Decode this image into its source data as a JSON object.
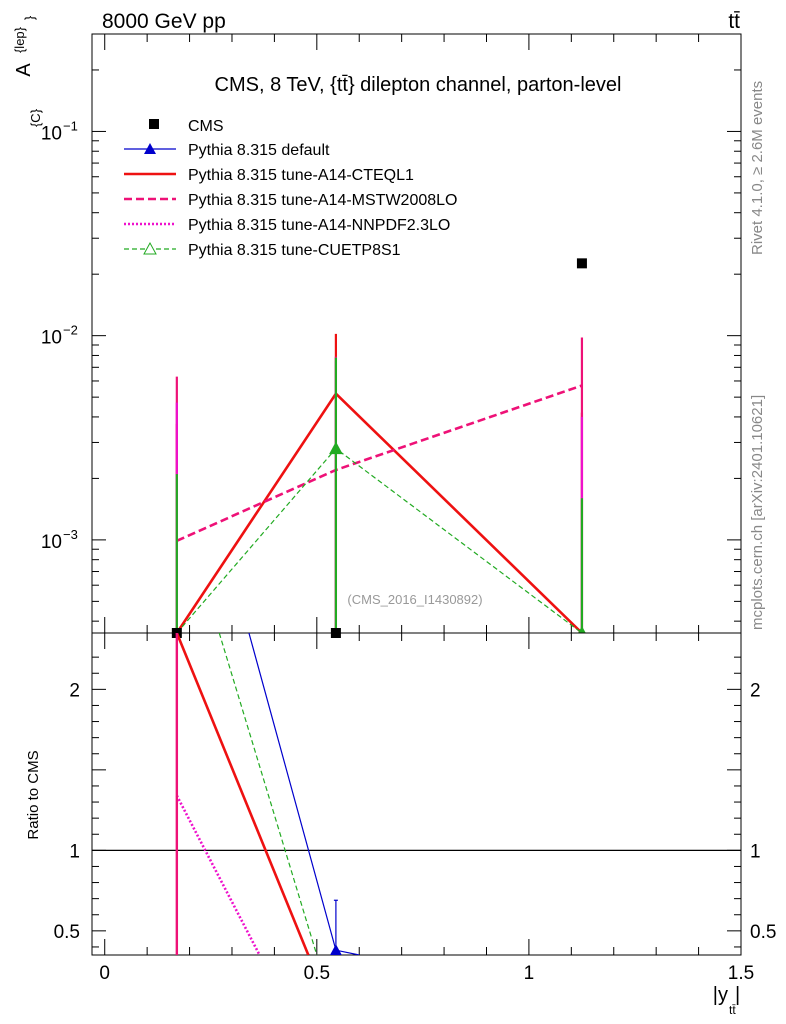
{
  "header": {
    "left": "8000 GeV pp",
    "right": "tt̄"
  },
  "side_labels": {
    "rivet": "Rivet 4.1.0, ≥ 2.6M events",
    "mcplots": "mcplots.cern.ch [arXiv:2401.10621]"
  },
  "watermark": "(CMS_2016_I1430892)",
  "chart_data": [
    {
      "type": "line",
      "panel": "main",
      "title": "CMS, 8 TeV, {tt̄} dilepton channel, parton-level",
      "ylabel": "A^{lep}_{C}",
      "yscale": "log",
      "ylim": [
        0.00035,
        0.3
      ],
      "xlim": [
        -0.03,
        1.5
      ],
      "yticks": [
        {
          "value": 0.1,
          "base": "10",
          "exp": "−1"
        },
        {
          "value": 0.01,
          "base": "10",
          "exp": "−2"
        },
        {
          "value": 0.001,
          "base": "10",
          "exp": "−3"
        }
      ],
      "data_points": {
        "name": "CMS",
        "x": [
          0.17,
          0.545,
          1.125
        ],
        "y": [
          0.00035,
          0.00035,
          0.0226
        ]
      },
      "series": [
        {
          "name": "Pythia 8.315 default",
          "color": "#0000cc",
          "style": "solid-thin-marker-triangle",
          "x": [
            0.17,
            0.545,
            1.125
          ],
          "y": [
            null,
            null,
            null
          ],
          "err_up": [
            null,
            null,
            null
          ]
        },
        {
          "name": "Pythia 8.315 tune-A14-CTEQL1",
          "color": "#ee1111",
          "style": "solid-thick",
          "x": [
            0.17,
            0.545,
            1.125
          ],
          "y": [
            0.00035,
            0.0052,
            0.00035
          ],
          "err_up": [
            0.0037,
            0.0102,
            0.0042
          ]
        },
        {
          "name": "Pythia 8.315 tune-A14-MSTW2008LO",
          "color": "#ee1177",
          "style": "dashed-thick",
          "x": [
            0.17,
            0.545,
            1.125
          ],
          "y": [
            0.00099,
            0.0022,
            0.0057
          ],
          "err_up": [
            0.0063,
            0.0079,
            0.0098
          ]
        },
        {
          "name": "Pythia 8.315 tune-A14-NNPDF2.3LO",
          "color": "#ee11cc",
          "style": "dotted",
          "x": [
            0.17,
            0.545,
            1.125
          ],
          "y": [
            null,
            null,
            null
          ],
          "err_up": [
            0.0047,
            0.0075,
            0.004
          ]
        },
        {
          "name": "Pythia 8.315 tune-CUETP8S1",
          "color": "#22aa22",
          "style": "dashed-thin-marker-open-triangle",
          "x": [
            0.17,
            0.545,
            1.125
          ],
          "y": [
            0.00035,
            0.0028,
            0.00035
          ],
          "err_up": [
            0.0021,
            0.0078,
            0.0016
          ]
        }
      ]
    },
    {
      "type": "line",
      "panel": "ratio",
      "ylabel": "Ratio to CMS",
      "xlabel": "|y_tt̄|",
      "ylim": [
        0.35,
        2.35
      ],
      "xlim": [
        -0.03,
        1.5
      ],
      "yticks": [
        0.5,
        1,
        2
      ],
      "ytick_labels": [
        "0.5",
        "1",
        "2"
      ],
      "xticks": [
        0,
        0.5,
        1,
        1.5
      ],
      "xtick_labels": [
        "0",
        "0.5",
        "1",
        "1.5"
      ],
      "reference": 1,
      "series": [
        {
          "name": "Pythia 8.315 default",
          "color": "#0000cc",
          "x": [
            0.34,
            0.545,
            0.6
          ],
          "y": [
            2.35,
            0.38,
            0.35
          ],
          "err_up_at": 0.545,
          "err_up": 0.69
        },
        {
          "name": "Pythia 8.315 tune-A14-CTEQL1",
          "color": "#ee1111",
          "x": [
            0.17,
            0.48
          ],
          "y": [
            2.35,
            0.35
          ]
        },
        {
          "name": "Pythia 8.315 tune-A14-NNPDF2.3LO",
          "color": "#ee11cc",
          "x": [
            0.17,
            0.365
          ],
          "y": [
            1.34,
            0.35
          ]
        },
        {
          "name": "Pythia 8.315 tune-CUETP8S1",
          "color": "#22aa22",
          "x": [
            0.27,
            0.5
          ],
          "y": [
            2.35,
            0.35
          ]
        }
      ],
      "vertical_bar_x": 0.17
    }
  ]
}
